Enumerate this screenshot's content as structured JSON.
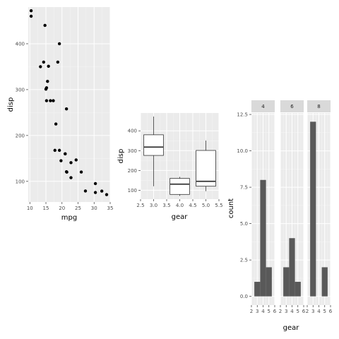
{
  "chart_data": [
    {
      "type": "scatter",
      "xlabel": "mpg",
      "ylabel": "disp",
      "xlim": [
        9.5,
        35
      ],
      "ylim": [
        55,
        480
      ],
      "x_ticks": [
        "10",
        "15",
        "20",
        "25",
        "30",
        "35"
      ],
      "y_ticks": [
        "100",
        "200",
        "300",
        "400"
      ],
      "grid": true,
      "points": [
        {
          "x": 21.0,
          "y": 160
        },
        {
          "x": 21.0,
          "y": 160
        },
        {
          "x": 22.8,
          "y": 108
        },
        {
          "x": 21.4,
          "y": 258
        },
        {
          "x": 18.7,
          "y": 360
        },
        {
          "x": 18.1,
          "y": 225
        },
        {
          "x": 14.3,
          "y": 360
        },
        {
          "x": 24.4,
          "y": 146.7
        },
        {
          "x": 22.8,
          "y": 140.8
        },
        {
          "x": 19.2,
          "y": 167.6
        },
        {
          "x": 17.8,
          "y": 167.6
        },
        {
          "x": 16.4,
          "y": 275.8
        },
        {
          "x": 17.3,
          "y": 275.8
        },
        {
          "x": 15.2,
          "y": 275.8
        },
        {
          "x": 10.4,
          "y": 472
        },
        {
          "x": 10.4,
          "y": 460
        },
        {
          "x": 14.7,
          "y": 440
        },
        {
          "x": 32.4,
          "y": 78.7
        },
        {
          "x": 30.4,
          "y": 75.7
        },
        {
          "x": 33.9,
          "y": 71.1
        },
        {
          "x": 21.5,
          "y": 120.1
        },
        {
          "x": 15.5,
          "y": 318
        },
        {
          "x": 15.2,
          "y": 304
        },
        {
          "x": 13.3,
          "y": 350
        },
        {
          "x": 19.2,
          "y": 400
        },
        {
          "x": 27.3,
          "y": 79
        },
        {
          "x": 26.0,
          "y": 120.3
        },
        {
          "x": 30.4,
          "y": 95.1
        },
        {
          "x": 15.8,
          "y": 351
        },
        {
          "x": 19.7,
          "y": 145
        },
        {
          "x": 15.0,
          "y": 301
        },
        {
          "x": 21.4,
          "y": 121
        }
      ]
    },
    {
      "type": "box",
      "xlabel": "gear",
      "ylabel": "disp",
      "xlim": [
        2.5,
        5.5
      ],
      "ylim": [
        55,
        490
      ],
      "x_ticks": [
        "2.5",
        "3.0",
        "3.5",
        "4.0",
        "4.5",
        "5.0",
        "5.5"
      ],
      "y_ticks": [
        "100",
        "200",
        "300",
        "400"
      ],
      "grid": true,
      "boxes": [
        {
          "x": 3,
          "min": 120.1,
          "q1": 275.8,
          "median": 318,
          "q3": 380,
          "max": 472
        },
        {
          "x": 4,
          "min": 71.1,
          "q1": 78.9,
          "median": 130.9,
          "q3": 160,
          "max": 167.6
        },
        {
          "x": 5,
          "min": 95.1,
          "q1": 120.3,
          "median": 145,
          "q3": 301,
          "max": 351
        }
      ]
    },
    {
      "type": "histogram",
      "xlabel": "gear",
      "ylabel": "count",
      "xlim": [
        2,
        6
      ],
      "ylim": [
        -0.6,
        12.6
      ],
      "x_ticks": [
        "2",
        "3",
        "4",
        "5",
        "6"
      ],
      "y_ticks": [
        "0.0",
        "2.5",
        "5.0",
        "7.5",
        "10.0",
        "12.5"
      ],
      "grid": true,
      "bar_color": "#595959",
      "facets": [
        {
          "label": "4",
          "bins": [
            {
              "x0": 2.5,
              "x1": 3.5,
              "count": 1
            },
            {
              "x0": 3.5,
              "x1": 4.5,
              "count": 8
            },
            {
              "x0": 4.5,
              "x1": 5.5,
              "count": 2
            }
          ]
        },
        {
          "label": "6",
          "bins": [
            {
              "x0": 2.5,
              "x1": 3.5,
              "count": 2
            },
            {
              "x0": 3.5,
              "x1": 4.5,
              "count": 4
            },
            {
              "x0": 4.5,
              "x1": 5.5,
              "count": 1
            }
          ]
        },
        {
          "label": "8",
          "bins": [
            {
              "x0": 2.5,
              "x1": 3.5,
              "count": 12
            },
            {
              "x0": 3.5,
              "x1": 4.5,
              "count": 0
            },
            {
              "x0": 4.5,
              "x1": 5.5,
              "count": 2
            }
          ]
        }
      ]
    }
  ]
}
